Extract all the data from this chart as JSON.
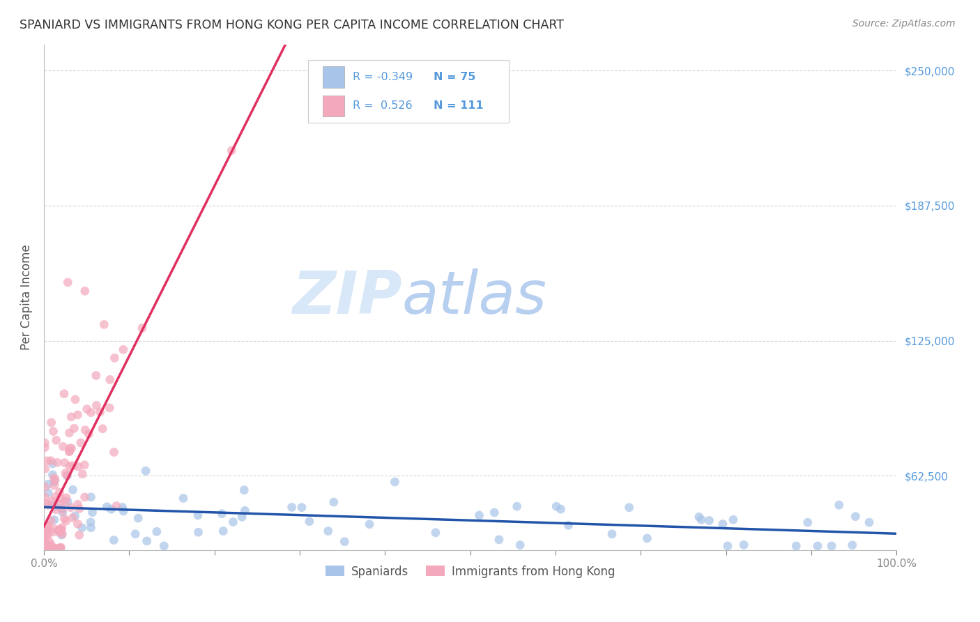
{
  "title": "SPANIARD VS IMMIGRANTS FROM HONG KONG PER CAPITA INCOME CORRELATION CHART",
  "source": "Source: ZipAtlas.com",
  "ylabel": "Per Capita Income",
  "xlim": [
    0.0,
    1.0
  ],
  "ylim": [
    28000,
    262000
  ],
  "yticks": [
    62500,
    125000,
    187500,
    250000
  ],
  "ytick_labels": [
    "$62,500",
    "$125,000",
    "$187,500",
    "$250,000"
  ],
  "xticks": [
    0.0,
    0.1,
    0.2,
    0.3,
    0.4,
    0.5,
    0.6,
    0.7,
    0.8,
    0.9,
    1.0
  ],
  "xtick_labels": [
    "0.0%",
    "",
    "",
    "",
    "",
    "",
    "",
    "",
    "",
    "",
    "100.0%"
  ],
  "blue_R": -0.349,
  "blue_N": 75,
  "pink_R": 0.526,
  "pink_N": 111,
  "blue_color": "#a8c4e8",
  "pink_color": "#f4a8bc",
  "blue_line_color": "#2255aa",
  "pink_line_color": "#e03060",
  "background_color": "#ffffff",
  "grid_color": "#cccccc",
  "title_color": "#333333",
  "right_label_color": "#5599dd",
  "legend_text_color": "#5599dd",
  "watermark_zip_color": "#d8e8f8",
  "watermark_atlas_color": "#b8d0f0",
  "seed": 42
}
